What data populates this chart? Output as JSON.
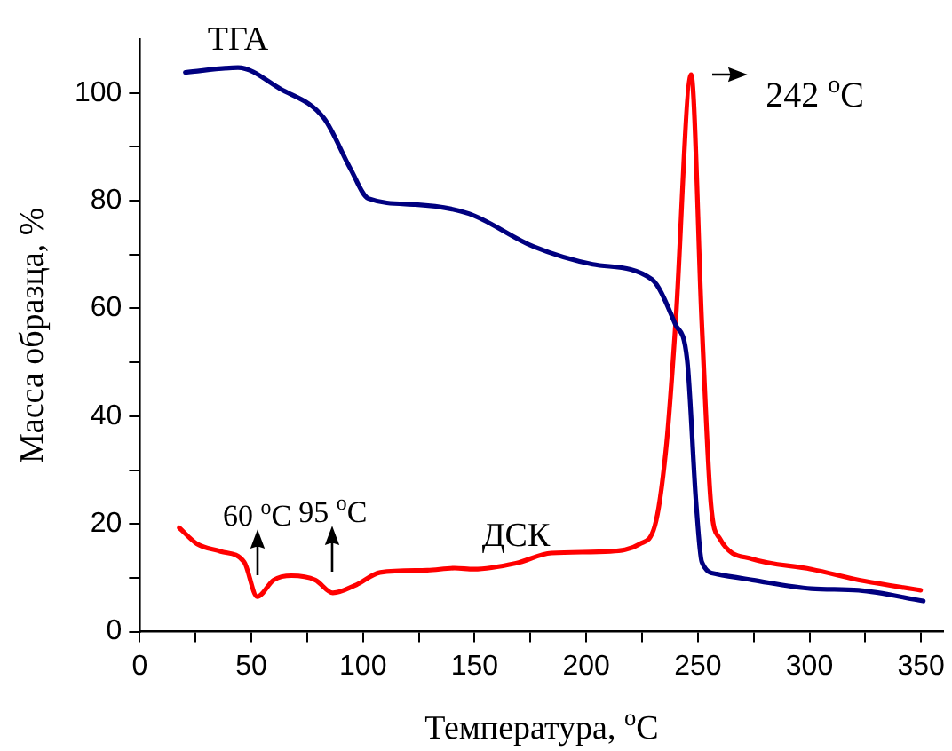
{
  "chart_data": {
    "type": "line",
    "xlabel": "Температура, $^{o}$C",
    "ylabel": "Масса образца, %",
    "xlim": [
      0,
      360
    ],
    "ylim": [
      0,
      110
    ],
    "xticks": [
      0,
      {
        "value": 25,
        "label": null
      },
      50,
      {
        "value": 75,
        "label": null
      },
      100,
      {
        "value": 125,
        "label": null
      },
      150,
      {
        "value": 175,
        "label": null
      },
      200,
      {
        "value": 225,
        "label": null
      },
      250,
      {
        "value": 275,
        "label": null
      },
      300,
      {
        "value": 325,
        "label": null
      },
      350
    ],
    "yticks": [
      0,
      {
        "value": 10,
        "label": null
      },
      20,
      {
        "value": 30,
        "label": null
      },
      40,
      {
        "value": 50,
        "label": null
      },
      60,
      {
        "value": 70,
        "label": null
      },
      80,
      {
        "value": 90,
        "label": null
      },
      100
    ],
    "grid": false,
    "legend": false,
    "marker": "none",
    "line_style": "solid",
    "series": [
      {
        "name": "ТГА",
        "color": "#000080",
        "x": [
          20.4,
          44,
          62.7,
          82.5,
          94.4,
          102.4,
          123.5,
          147.4,
          176.3,
          202.9,
          229.4,
          240,
          245.2,
          249.2,
          251.8,
          258.5,
          274.4,
          300.8,
          322,
          351
        ],
        "values": [
          103.8,
          104.7,
          100.8,
          95.3,
          85.9,
          80.4,
          79.3,
          77.6,
          71.5,
          68.2,
          65.4,
          57,
          50.5,
          24,
          12.9,
          10.7,
          9.6,
          8,
          7.7,
          5.7
        ]
      },
      {
        "name": "ДСК",
        "color": "#ff0000",
        "x": [
          17.7,
          25.7,
          36.3,
          46.8,
          52.6,
          60,
          68,
          78.6,
          86.5,
          97,
          107.7,
          128.8,
          141,
          149.7,
          168.5,
          184.4,
          210.8,
          224,
          230.7,
          236,
          240,
          247,
          251.8,
          255.8,
          259.8,
          274.4,
          300.8,
          324.6,
          349.8
        ],
        "values": [
          19.3,
          16.3,
          14.9,
          12.9,
          6.5,
          9.6,
          10.4,
          9.6,
          7.2,
          8.7,
          11,
          11.4,
          11.8,
          11.6,
          12.7,
          14.6,
          14.9,
          16.3,
          19.6,
          35,
          57,
          103.4,
          57,
          24,
          17.3,
          13.5,
          11.6,
          9.4,
          7.7
        ]
      }
    ],
    "annotations": [
      {
        "text": "60 $^{o}$C",
        "x": 52.6,
        "y": 6.5
      },
      {
        "text": "95 $^{o}$C",
        "x": 86.5,
        "y": 7.2
      },
      {
        "text": "242 $^{o}$C",
        "x": 247,
        "y": 103.4
      }
    ]
  }
}
